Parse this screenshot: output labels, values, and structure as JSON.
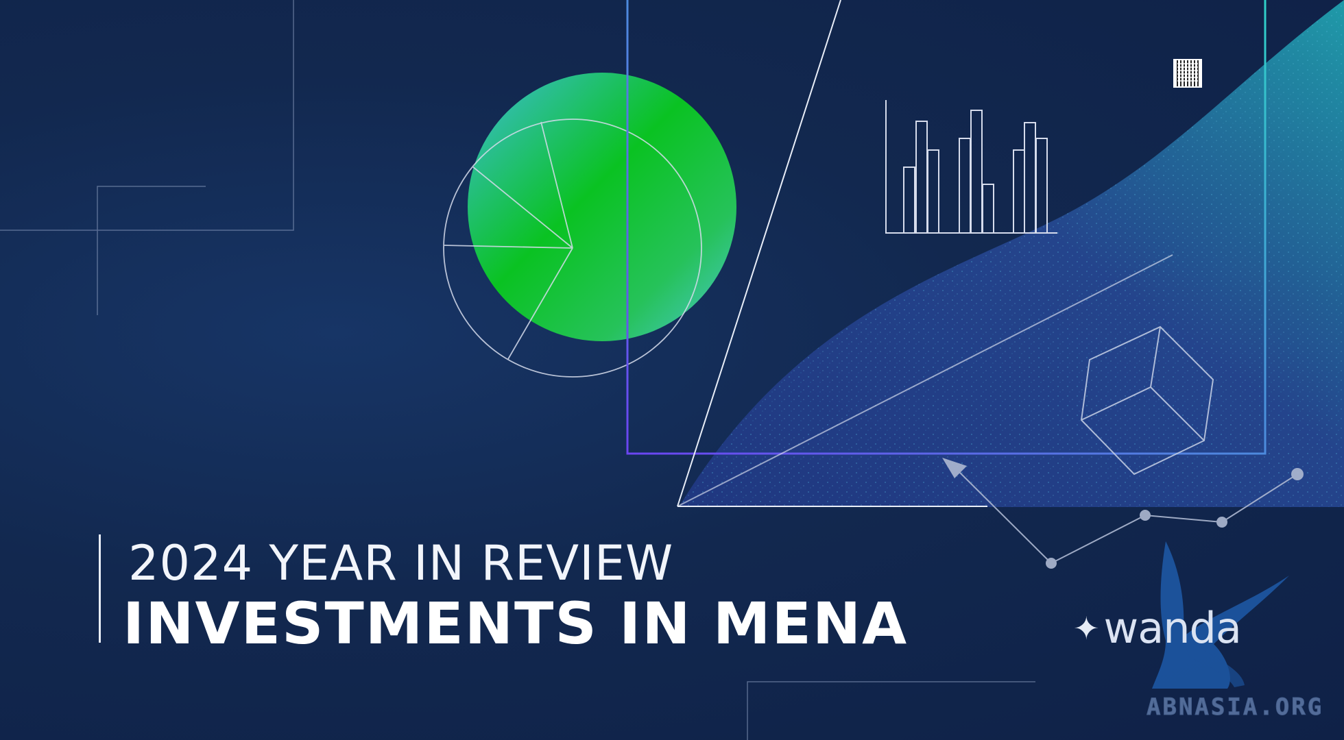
{
  "cover": {
    "subtitle": "2024 YEAR IN REVIEW",
    "headline": "INVESTMENTS IN MENA"
  },
  "brand": {
    "name": "wanda",
    "mark_icon": "sparkle-star-icon"
  },
  "watermark": {
    "text": "ABNASIA.ORG",
    "emblem_icon": "griffin-emblem-icon"
  },
  "colors": {
    "background": "#12284f",
    "accent_green": "#0dbe24",
    "accent_teal": "#3fc9c0",
    "accent_purple": "#6a4cf0",
    "line_light": "#c8d2e6"
  }
}
